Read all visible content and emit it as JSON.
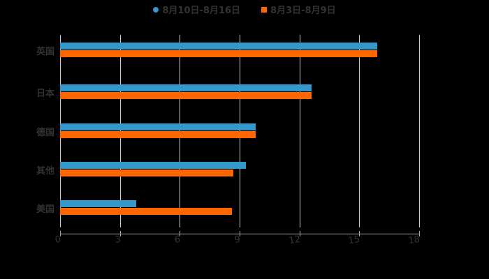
{
  "chart_data": {
    "type": "bar",
    "orientation": "horizontal",
    "title": "",
    "xlabel": "",
    "ylabel": "",
    "xlim": [
      0,
      18
    ],
    "x_ticks": [
      "0",
      "3",
      "6",
      "9",
      "12",
      "15",
      "18"
    ],
    "categories": [
      "英国",
      "日本",
      "德国",
      "其他",
      "美国"
    ],
    "series": [
      {
        "name": "8月10日-8月16日",
        "color": "#3399cc",
        "values": [
          15.9,
          12.6,
          9.8,
          9.3,
          3.8
        ]
      },
      {
        "name": "8月3日-8月9日",
        "color": "#ff6600",
        "values": [
          15.9,
          12.6,
          9.8,
          8.7,
          8.6
        ]
      }
    ],
    "grid": true,
    "legend_position": "top"
  },
  "legend": {
    "items": [
      {
        "label": "8月10日-8月16日",
        "color": "#3399cc",
        "shape": "circle"
      },
      {
        "label": "8月3日-8月9日",
        "color": "#ff6600",
        "shape": "square"
      }
    ]
  }
}
